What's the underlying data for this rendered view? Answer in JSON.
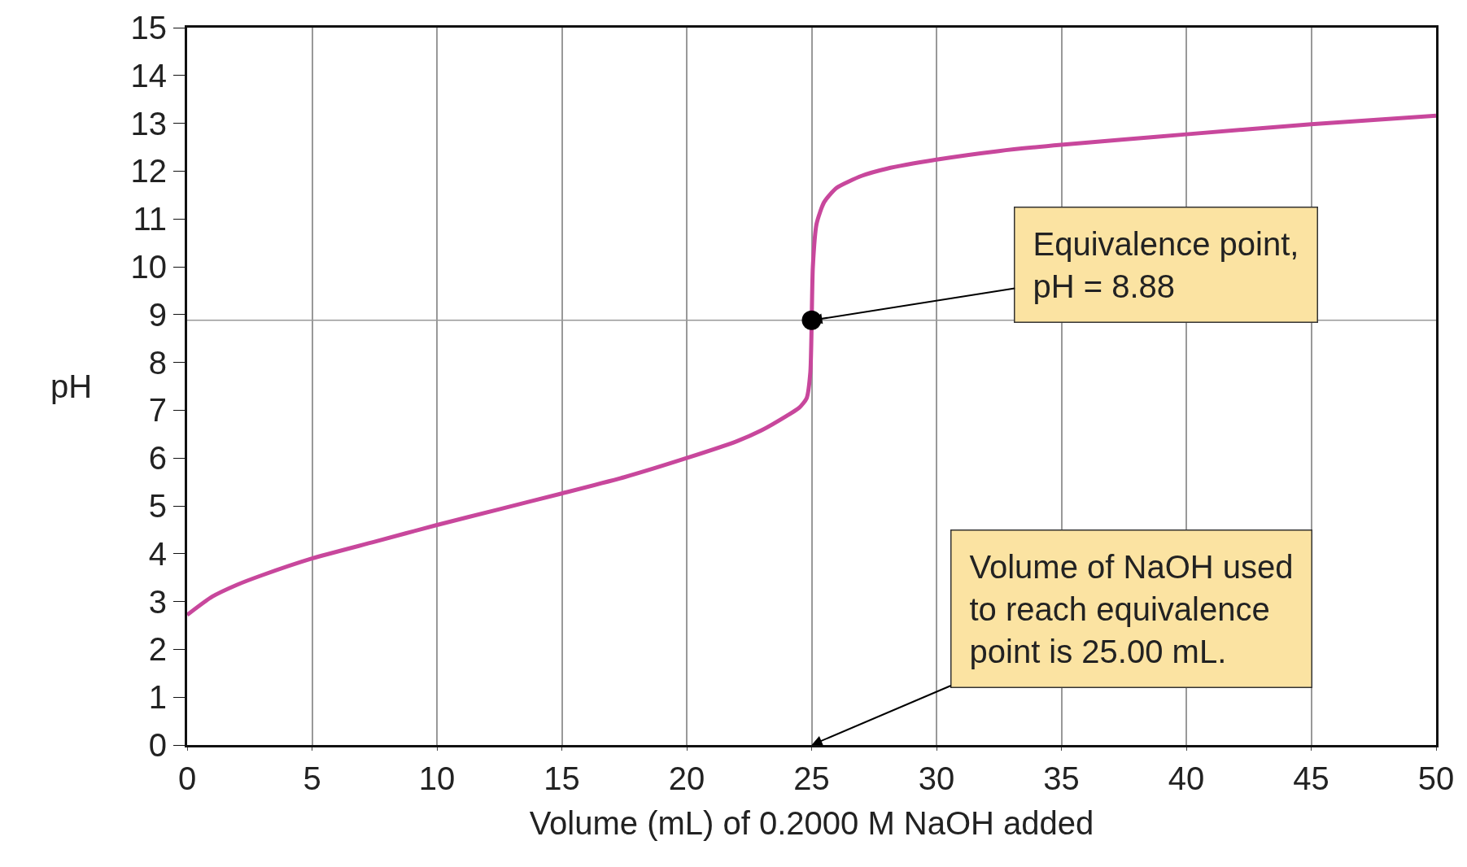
{
  "chart_data": {
    "type": "line",
    "xlabel": "Volume (mL) of 0.2000 M NaOH added",
    "ylabel": "pH",
    "xlim": [
      0,
      50
    ],
    "xticks": [
      0,
      5,
      10,
      15,
      20,
      25,
      30,
      35,
      40,
      45,
      50
    ],
    "ylim": [
      0,
      15
    ],
    "yticks": [
      0,
      1,
      2,
      3,
      4,
      5,
      6,
      7,
      8,
      9,
      10,
      11,
      12,
      13,
      14,
      15
    ],
    "grid": "x",
    "series": [
      {
        "color": "#c8479c",
        "marker": "none",
        "x": [
          0,
          1,
          2,
          3,
          5,
          7.5,
          10,
          12.5,
          15,
          17.5,
          20,
          22,
          23,
          24,
          24.5,
          24.8,
          24.95,
          25.05,
          25.2,
          25.5,
          26,
          27,
          28,
          30,
          32.5,
          35,
          37.5,
          40,
          45,
          50
        ],
        "values": [
          2.72,
          3.1,
          3.35,
          3.55,
          3.9,
          4.25,
          4.6,
          4.93,
          5.26,
          5.6,
          6.0,
          6.35,
          6.58,
          6.88,
          7.05,
          7.25,
          7.8,
          10.0,
          10.9,
          11.35,
          11.65,
          11.9,
          12.05,
          12.24,
          12.42,
          12.55,
          12.66,
          12.77,
          12.98,
          13.16
        ]
      },
      {
        "type": "scatter",
        "color": "#000000",
        "marker": "circle",
        "x": [
          25
        ],
        "values": [
          8.88
        ]
      }
    ],
    "ref_lines": [
      {
        "axis": "y",
        "value": 8.88,
        "color": "#999999"
      }
    ],
    "annotations": [
      {
        "text": "Equivalence point,\npH = 8.88",
        "x": 25,
        "y": 8.88
      },
      "Volume of NaOH used\nto reach equivalence\npoint is 25.00 mL."
    ]
  }
}
